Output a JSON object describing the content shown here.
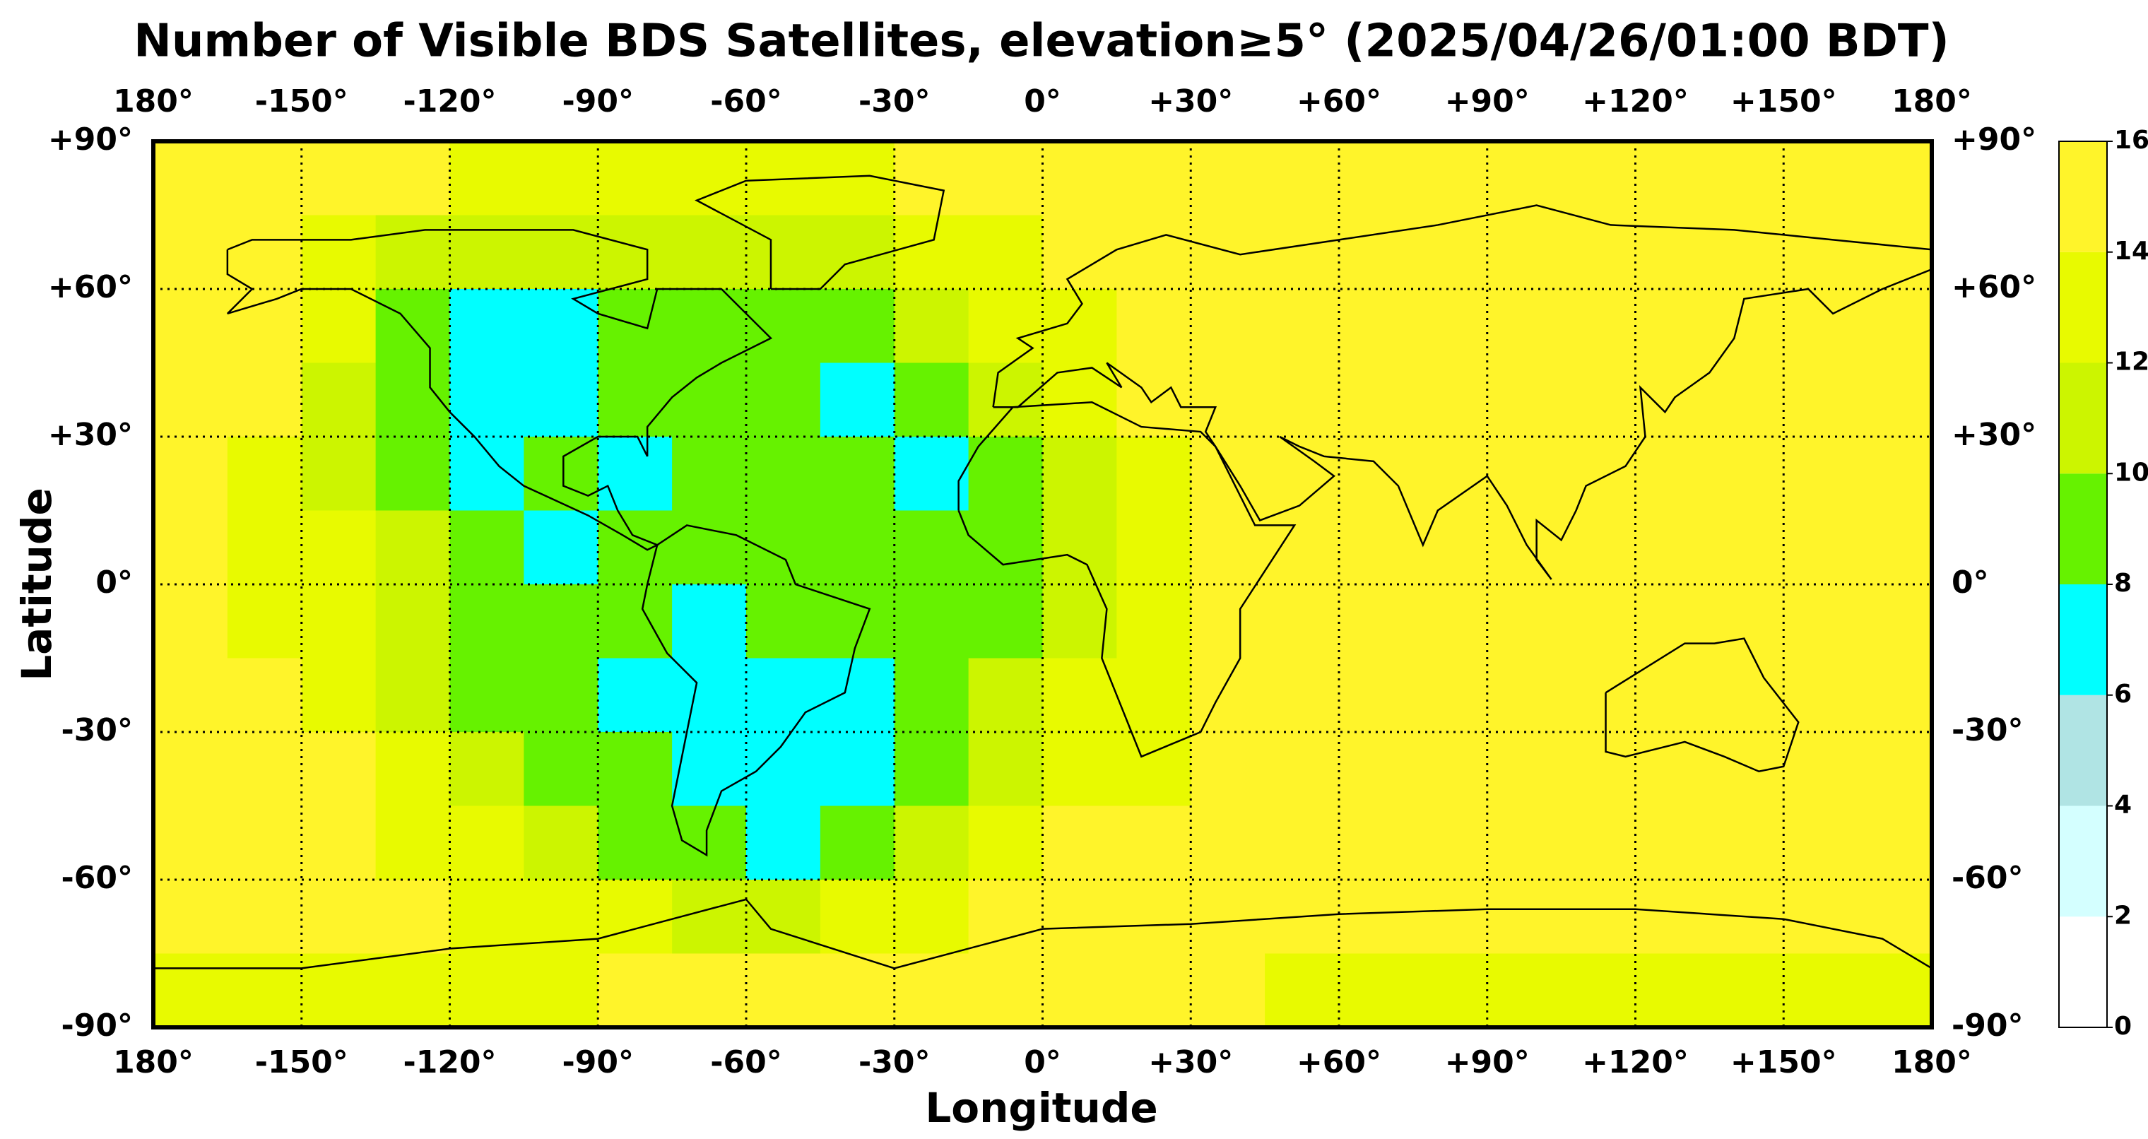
{
  "chart_data": {
    "type": "heatmap",
    "title": "Number of Visible BDS Satellites, elevation≥5° (2025/04/26/01:00 BDT)",
    "xlabel": "Longitude",
    "ylabel": "Latitude",
    "xlim": [
      -180,
      180
    ],
    "ylim": [
      -90,
      90
    ],
    "grid": true,
    "xticks": [
      {
        "value": -180,
        "label": "180°"
      },
      {
        "value": -150,
        "label": "-150°"
      },
      {
        "value": -120,
        "label": "-120°"
      },
      {
        "value": -90,
        "label": "-90°"
      },
      {
        "value": -60,
        "label": "-60°"
      },
      {
        "value": -30,
        "label": "-30°"
      },
      {
        "value": 0,
        "label": "0°"
      },
      {
        "value": 30,
        "label": "+30°"
      },
      {
        "value": 60,
        "label": "+60°"
      },
      {
        "value": 90,
        "label": "+90°"
      },
      {
        "value": 120,
        "label": "+120°"
      },
      {
        "value": 150,
        "label": "+150°"
      },
      {
        "value": 180,
        "label": "180°"
      }
    ],
    "yticks": [
      {
        "value": 90,
        "label": "+90°"
      },
      {
        "value": 60,
        "label": "+60°"
      },
      {
        "value": 30,
        "label": "+30°"
      },
      {
        "value": 0,
        "label": "0°"
      },
      {
        "value": -30,
        "label": "-30°"
      },
      {
        "value": -60,
        "label": "-60°"
      },
      {
        "value": -90,
        "label": "-90°"
      }
    ],
    "xbins": [
      -180,
      -165,
      -150,
      -135,
      -120,
      -105,
      -90,
      -75,
      -60,
      -45,
      -30,
      -15,
      0,
      15,
      30,
      45,
      60,
      75,
      90,
      105,
      120,
      135,
      150,
      165,
      180
    ],
    "ybins": [
      90,
      75,
      60,
      45,
      30,
      15,
      0,
      -15,
      -30,
      -45,
      -60,
      -75,
      -90
    ],
    "values": [
      [
        15,
        15,
        15,
        15,
        13,
        13,
        13,
        13,
        13,
        13,
        15,
        15,
        15,
        15,
        15,
        15,
        15,
        15,
        15,
        15,
        15,
        15,
        15,
        15
      ],
      [
        15,
        15,
        13,
        11,
        11,
        11,
        11,
        11,
        11,
        11,
        13,
        13,
        15,
        15,
        15,
        15,
        15,
        15,
        15,
        15,
        15,
        15,
        15,
        15
      ],
      [
        15,
        15,
        13,
        9,
        7,
        7,
        9,
        9,
        9,
        9,
        11,
        13,
        13,
        15,
        15,
        15,
        15,
        15,
        15,
        15,
        15,
        15,
        15,
        15
      ],
      [
        15,
        15,
        11,
        9,
        7,
        7,
        9,
        9,
        9,
        7,
        9,
        11,
        13,
        15,
        15,
        15,
        15,
        15,
        15,
        15,
        15,
        15,
        15,
        15
      ],
      [
        15,
        13,
        11,
        9,
        7,
        9,
        7,
        9,
        9,
        9,
        7,
        9,
        11,
        13,
        15,
        15,
        15,
        15,
        15,
        15,
        15,
        15,
        15,
        15
      ],
      [
        15,
        13,
        13,
        11,
        9,
        7,
        9,
        9,
        9,
        9,
        9,
        9,
        11,
        13,
        15,
        15,
        15,
        15,
        15,
        15,
        15,
        15,
        15,
        15
      ],
      [
        15,
        13,
        13,
        11,
        9,
        9,
        9,
        7,
        9,
        9,
        9,
        9,
        11,
        13,
        15,
        15,
        15,
        15,
        15,
        15,
        15,
        15,
        15,
        15
      ],
      [
        15,
        15,
        13,
        11,
        9,
        9,
        7,
        7,
        7,
        7,
        9,
        11,
        13,
        13,
        15,
        15,
        15,
        15,
        15,
        15,
        15,
        15,
        15,
        15
      ],
      [
        15,
        15,
        15,
        13,
        11,
        9,
        9,
        7,
        7,
        7,
        9,
        11,
        13,
        13,
        15,
        15,
        15,
        15,
        15,
        15,
        15,
        15,
        15,
        15
      ],
      [
        15,
        15,
        15,
        13,
        13,
        11,
        9,
        9,
        7,
        9,
        11,
        13,
        15,
        15,
        15,
        15,
        15,
        15,
        15,
        15,
        15,
        15,
        15,
        15
      ],
      [
        15,
        15,
        15,
        15,
        13,
        13,
        13,
        11,
        11,
        13,
        13,
        15,
        15,
        15,
        15,
        15,
        15,
        15,
        15,
        15,
        15,
        15,
        15,
        15
      ],
      [
        13,
        13,
        13,
        13,
        13,
        13,
        15,
        15,
        15,
        15,
        15,
        15,
        15,
        15,
        15,
        13,
        13,
        13,
        13,
        13,
        13,
        13,
        13,
        13
      ]
    ],
    "colorbar": {
      "ticks": [
        0,
        2,
        4,
        6,
        8,
        10,
        12,
        14,
        16
      ],
      "colors": [
        "#ffffff",
        "#d4ffff",
        "#b0e4e4",
        "#00ffff",
        "#66f200",
        "#ccf500",
        "#e8fa00",
        "#fff42a"
      ]
    }
  }
}
